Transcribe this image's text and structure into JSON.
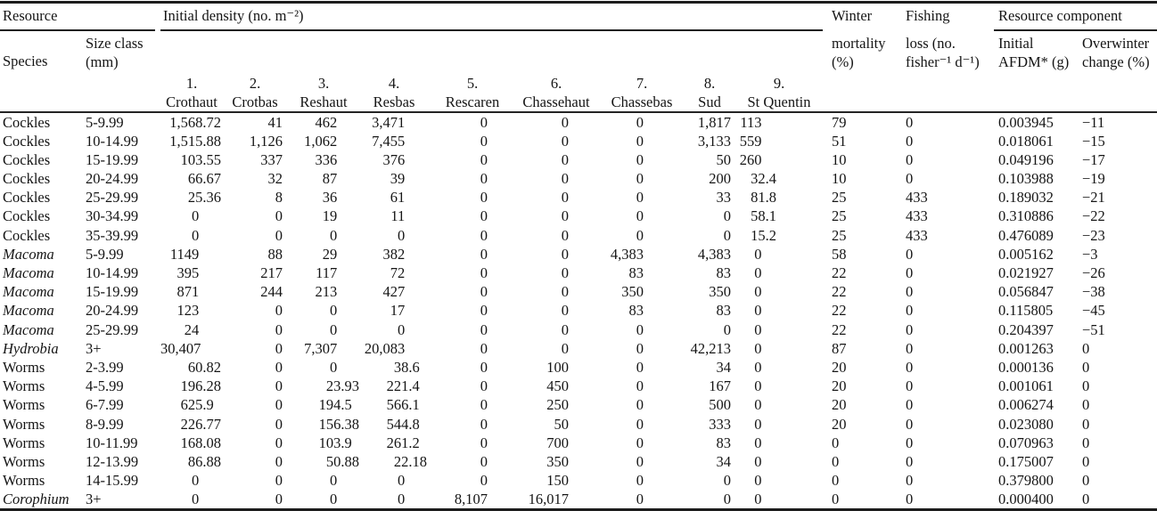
{
  "table": {
    "header": {
      "resource_group": "Resource",
      "density_group": "Initial density (no. m⁻²)",
      "component_group": "Resource component",
      "species_label": "Species",
      "size_class_line1": "Size class",
      "size_class_line2": "(mm)",
      "winter_line1": "Winter",
      "winter_line2": "mortality",
      "winter_line3": "(%)",
      "fishing_line1": "Fishing",
      "fishing_line2": "loss (no.",
      "fishing_line3": "fisher⁻¹ d⁻¹)",
      "afdm_line1": "Initial",
      "afdm_line2": "AFDM* (g)",
      "overwinter_line1": "Overwinter",
      "overwinter_line2": "change (%)",
      "sites": [
        {
          "num": "1.",
          "name": "Crothaut"
        },
        {
          "num": "2.",
          "name": "Crotbas"
        },
        {
          "num": "3.",
          "name": "Reshaut"
        },
        {
          "num": "4.",
          "name": "Resbas"
        },
        {
          "num": "5.",
          "name": "Rescaren"
        },
        {
          "num": "6.",
          "name": "Chassehaut"
        },
        {
          "num": "7.",
          "name": "Chassebas"
        },
        {
          "num": "8.",
          "name": "Sud"
        },
        {
          "num": "9.",
          "name": "St Quentin"
        }
      ]
    },
    "rows": [
      {
        "species": "Cockles",
        "italic": false,
        "size_class": "5-9.99",
        "values": [
          "1,568.72",
          "41",
          "462",
          "3,471",
          "0",
          "0",
          "0",
          "1,817",
          "113",
          "79",
          "0",
          "0.003945",
          "−11"
        ]
      },
      {
        "species": "Cockles",
        "italic": false,
        "size_class": "10-14.99",
        "values": [
          "1,515.88",
          "1,126",
          "1,062",
          "7,455",
          "0",
          "0",
          "0",
          "3,133",
          "559",
          "51",
          "0",
          "0.018061",
          "−15"
        ]
      },
      {
        "species": "Cockles",
        "italic": false,
        "size_class": "15-19.99",
        "values": [
          "103.55",
          "337",
          "336",
          "376",
          "0",
          "0",
          "0",
          "50",
          "260",
          "10",
          "0",
          "0.049196",
          "−17"
        ]
      },
      {
        "species": "Cockles",
        "italic": false,
        "size_class": "20-24.99",
        "values": [
          "66.67",
          "32",
          "87",
          "39",
          "0",
          "0",
          "0",
          "200",
          "32.4",
          "10",
          "0",
          "0.103988",
          "−19"
        ]
      },
      {
        "species": "Cockles",
        "italic": false,
        "size_class": "25-29.99",
        "values": [
          "25.36",
          "8",
          "36",
          "61",
          "0",
          "0",
          "0",
          "33",
          "81.8",
          "25",
          "433",
          "0.189032",
          "−21"
        ]
      },
      {
        "species": "Cockles",
        "italic": false,
        "size_class": "30-34.99",
        "values": [
          "0",
          "0",
          "19",
          "11",
          "0",
          "0",
          "0",
          "0",
          "58.1",
          "25",
          "433",
          "0.310886",
          "−22"
        ]
      },
      {
        "species": "Cockles",
        "italic": false,
        "size_class": "35-39.99",
        "values": [
          "0",
          "0",
          "0",
          "0",
          "0",
          "0",
          "0",
          "0",
          "15.2",
          "25",
          "433",
          "0.476089",
          "−23"
        ]
      },
      {
        "species": "Macoma",
        "italic": true,
        "size_class": "5-9.99",
        "values": [
          "1149",
          "88",
          "29",
          "382",
          "0",
          "0",
          "4,383",
          "4,383",
          "0",
          "58",
          "0",
          "0.005162",
          "−3"
        ]
      },
      {
        "species": "Macoma",
        "italic": true,
        "size_class": "10-14.99",
        "values": [
          "395",
          "217",
          "117",
          "72",
          "0",
          "0",
          "83",
          "83",
          "0",
          "22",
          "0",
          "0.021927",
          "−26"
        ]
      },
      {
        "species": "Macoma",
        "italic": true,
        "size_class": "15-19.99",
        "values": [
          "871",
          "244",
          "213",
          "427",
          "0",
          "0",
          "350",
          "350",
          "0",
          "22",
          "0",
          "0.056847",
          "−38"
        ]
      },
      {
        "species": "Macoma",
        "italic": true,
        "size_class": "20-24.99",
        "values": [
          "123",
          "0",
          "0",
          "17",
          "0",
          "0",
          "83",
          "83",
          "0",
          "22",
          "0",
          "0.115805",
          "−45"
        ]
      },
      {
        "species": "Macoma",
        "italic": true,
        "size_class": "25-29.99",
        "values": [
          "24",
          "0",
          "0",
          "0",
          "0",
          "0",
          "0",
          "0",
          "0",
          "22",
          "0",
          "0.204397",
          "−51"
        ]
      },
      {
        "species": "Hydrobia",
        "italic": true,
        "size_class": "3+",
        "values": [
          "30,407",
          "0",
          "7,307",
          "20,083",
          "0",
          "0",
          "0",
          "42,213",
          "0",
          "87",
          "0",
          "0.001263",
          "0"
        ]
      },
      {
        "species": "Worms",
        "italic": false,
        "size_class": "2-3.99",
        "values": [
          "60.82",
          "0",
          "0",
          "38.6",
          "0",
          "100",
          "0",
          "34",
          "0",
          "20",
          "0",
          "0.000136",
          "0"
        ]
      },
      {
        "species": "Worms",
        "italic": false,
        "size_class": "4-5.99",
        "values": [
          "196.28",
          "0",
          "23.93",
          "221.4",
          "0",
          "450",
          "0",
          "167",
          "0",
          "20",
          "0",
          "0.001061",
          "0"
        ]
      },
      {
        "species": "Worms",
        "italic": false,
        "size_class": "6-7.99",
        "values": [
          "625.9",
          "0",
          "194.5",
          "566.1",
          "0",
          "250",
          "0",
          "500",
          "0",
          "20",
          "0",
          "0.006274",
          "0"
        ]
      },
      {
        "species": "Worms",
        "italic": false,
        "size_class": "8-9.99",
        "values": [
          "226.77",
          "0",
          "156.38",
          "544.8",
          "0",
          "50",
          "0",
          "333",
          "0",
          "20",
          "0",
          "0.023080",
          "0"
        ]
      },
      {
        "species": "Worms",
        "italic": false,
        "size_class": "10-11.99",
        "values": [
          "168.08",
          "0",
          "103.9",
          "261.2",
          "0",
          "700",
          "0",
          "83",
          "0",
          "0",
          "0",
          "0.070963",
          "0"
        ]
      },
      {
        "species": "Worms",
        "italic": false,
        "size_class": "12-13.99",
        "values": [
          "86.88",
          "0",
          "50.88",
          "22.18",
          "0",
          "350",
          "0",
          "34",
          "0",
          "0",
          "0",
          "0.175007",
          "0"
        ]
      },
      {
        "species": "Worms",
        "italic": false,
        "size_class": "14-15.99",
        "values": [
          "0",
          "0",
          "0",
          "0",
          "0",
          "150",
          "0",
          "0",
          "0",
          "0",
          "0",
          "0.379800",
          "0"
        ]
      },
      {
        "species": "Corophium",
        "italic": true,
        "size_class": "3+",
        "values": [
          "0",
          "0",
          "0",
          "0",
          "8,107",
          "16,017",
          "0",
          "0",
          "0",
          "0",
          "0",
          "0.000400",
          "0"
        ]
      }
    ]
  }
}
